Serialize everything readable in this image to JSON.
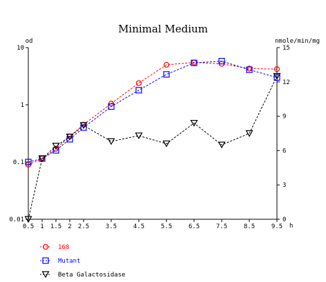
{
  "chart_data": {
    "type": "line",
    "title": "Minimal Medium",
    "ylabel_left": "od",
    "ylabel_right": "nmole/min/mg",
    "xlabel": "h",
    "x_ticks": [
      "0.5",
      "1",
      "1.5",
      "2",
      "2.5",
      "3.5",
      "4.5",
      "5.5",
      "6.5",
      "7.5",
      "8.5",
      "9.5"
    ],
    "y_left": {
      "scale": "log",
      "range": [
        0.01,
        10
      ],
      "ticks": [
        "10",
        "1",
        "0.1",
        "0.01"
      ]
    },
    "y_right": {
      "scale": "linear",
      "range": [
        0,
        15
      ],
      "ticks": [
        "15",
        "12",
        "9",
        "6",
        "3",
        "0"
      ]
    },
    "series": [
      {
        "name": "168",
        "axis": "left",
        "color": "#ff0000",
        "marker": "circle",
        "x": [
          0.5,
          1,
          1.5,
          2,
          2.5,
          3.5,
          4.5,
          5.5,
          6.5,
          7.5,
          8.5,
          9.5
        ],
        "y": [
          0.09,
          0.115,
          0.17,
          0.28,
          0.45,
          1.05,
          2.4,
          5.0,
          5.5,
          5.2,
          4.3,
          4.2
        ]
      },
      {
        "name": "Mutant",
        "axis": "left",
        "color": "#0000ff",
        "marker": "square",
        "x": [
          0.5,
          1,
          1.5,
          2,
          2.5,
          3.5,
          4.5,
          5.5,
          6.5,
          7.5,
          8.5,
          9.5
        ],
        "y": [
          0.1,
          0.115,
          0.16,
          0.25,
          0.4,
          0.93,
          1.8,
          3.4,
          5.4,
          5.8,
          4.1,
          3.0
        ]
      },
      {
        "name": "Beta Galactosidase",
        "axis": "right",
        "color": "#000000",
        "marker": "triangle-down",
        "x": [
          0.5,
          1,
          1.5,
          2,
          2.5,
          3.5,
          4.5,
          5.5,
          6.5,
          7.5,
          8.5,
          9.5
        ],
        "y": [
          0.0,
          5.3,
          6.4,
          7.2,
          8.2,
          6.8,
          7.3,
          6.6,
          8.4,
          6.5,
          7.5,
          12.5
        ]
      }
    ],
    "grid": false,
    "legend_position": "bottom-left"
  }
}
